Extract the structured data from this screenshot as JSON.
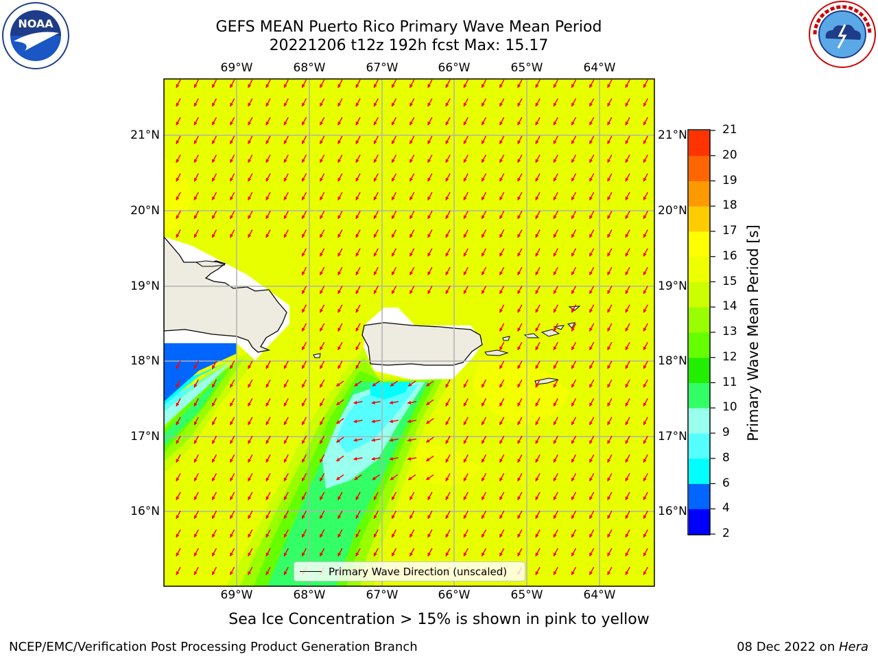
{
  "title": {
    "line1": "GEFS MEAN Puerto Rico Primary Wave Mean Period",
    "line2": "20221206 t12z 192h fcst   Max: 15.17"
  },
  "logos": {
    "left": "NOAA",
    "left_ring": "NATIONAL OCEANIC AND ATMOSPHERIC ADMINISTRATION · U.S. DEPARTMENT OF COMMERCE",
    "right_ring": "NATIONAL WEATHER SERVICE"
  },
  "map": {
    "lon_labels": [
      "69°W",
      "68°W",
      "67°W",
      "66°W",
      "65°W",
      "64°W"
    ],
    "lat_labels": [
      "21°N",
      "20°N",
      "19°N",
      "18°N",
      "17°N",
      "16°N"
    ],
    "legend_label": "Primary Wave Direction (unscaled)",
    "arrow_color": "#ff0000",
    "land_color": "#eeebe0",
    "ocean_base_color": "#e8ff00"
  },
  "colorbar": {
    "label": "Primary Wave Mean Period [s]",
    "ticks": [
      "2",
      "4",
      "6",
      "8",
      "9",
      "10",
      "11",
      "12",
      "13",
      "14",
      "15",
      "16",
      "17",
      "18",
      "19",
      "20",
      "21"
    ],
    "colors": [
      "#0000ff",
      "#0066ff",
      "#00ffff",
      "#55ffff",
      "#99ffee",
      "#33ff66",
      "#22ee00",
      "#66ff00",
      "#99ff00",
      "#ccff00",
      "#eeff00",
      "#ffff00",
      "#ffcc00",
      "#ff9900",
      "#ff6600",
      "#ff3300",
      "#ff0000"
    ]
  },
  "footer": {
    "note": "Sea Ice Concentration > 15% is shown in pink to yellow",
    "left": "NCEP/EMC/Verification Post Processing Product Generation Branch",
    "date": "08 Dec 2022 on ",
    "machine": "Hera"
  }
}
